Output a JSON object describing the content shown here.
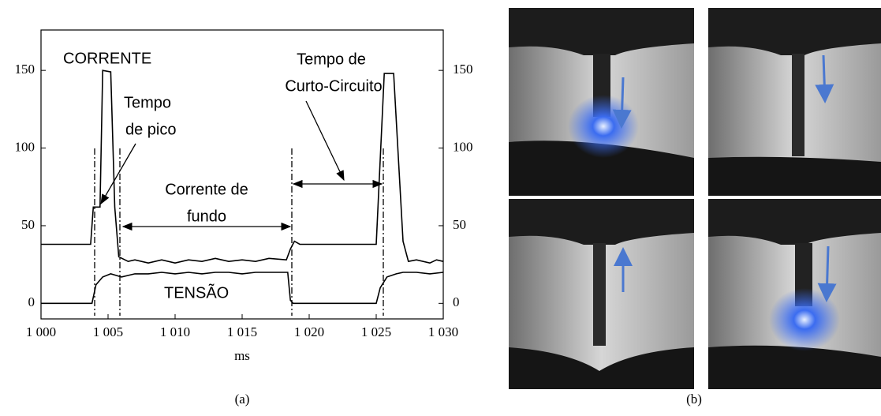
{
  "chart_data": {
    "type": "line",
    "xlabel": "ms",
    "xlim": [
      1000,
      1030
    ],
    "xticks": [
      {
        "value": 1000,
        "label": "1 000"
      },
      {
        "value": 1005,
        "label": "1 005"
      },
      {
        "value": 1010,
        "label": "1 010"
      },
      {
        "value": 1015,
        "label": "1 015"
      },
      {
        "value": 1020,
        "label": "1 020"
      },
      {
        "value": 1025,
        "label": "1 025"
      },
      {
        "value": 1030,
        "label": "1 030"
      }
    ],
    "ylim": [
      -10,
      176
    ],
    "yticks": [
      0,
      50,
      100,
      150
    ],
    "y2lim": [
      -10,
      176
    ],
    "y2ticks": [
      0,
      50,
      100,
      150
    ],
    "series": [
      {
        "name": "CORRENTE",
        "color": "#000000",
        "x": [
          1000,
          1003.7,
          1003.9,
          1004.4,
          1004.6,
          1005.2,
          1005.5,
          1005.8,
          1006.5,
          1007,
          1008,
          1009,
          1010,
          1011,
          1012,
          1013,
          1014,
          1015,
          1016,
          1017,
          1018.3,
          1018.6,
          1018.9,
          1019.3,
          1025,
          1025.6,
          1026.3,
          1027,
          1027.4,
          1028,
          1029,
          1029.5,
          1030
        ],
        "values": [
          38,
          38,
          62,
          62,
          150,
          149,
          62,
          30,
          27,
          28,
          26,
          28,
          26,
          28,
          27,
          29,
          27,
          28,
          27,
          29,
          28,
          35,
          40,
          38,
          38,
          148,
          148,
          40,
          27,
          28,
          26,
          28,
          27
        ]
      },
      {
        "name": "TENSÃO",
        "color": "#000000",
        "x": [
          1000,
          1003.8,
          1004.1,
          1004.6,
          1005.2,
          1005.6,
          1006,
          1007,
          1008,
          1009,
          1010,
          1011,
          1012,
          1013,
          1014,
          1015,
          1016,
          1017,
          1018.4,
          1018.6,
          1018.8,
          1025,
          1025.3,
          1025.8,
          1026.5,
          1027,
          1028,
          1029,
          1030
        ],
        "values": [
          0,
          0,
          12,
          17,
          19,
          18,
          17,
          19,
          19,
          20,
          19,
          20,
          19,
          20,
          20,
          19,
          20,
          20,
          20,
          2,
          0,
          0,
          10,
          17,
          19,
          20,
          20,
          19,
          20
        ]
      }
    ],
    "annotations": [
      [
        "Tempo",
        "de pico"
      ],
      [
        "Corrente de",
        "fundo"
      ],
      [
        "Tempo de",
        "Curto-Circuito"
      ]
    ],
    "captions": [
      "(a)",
      "(b)"
    ]
  }
}
